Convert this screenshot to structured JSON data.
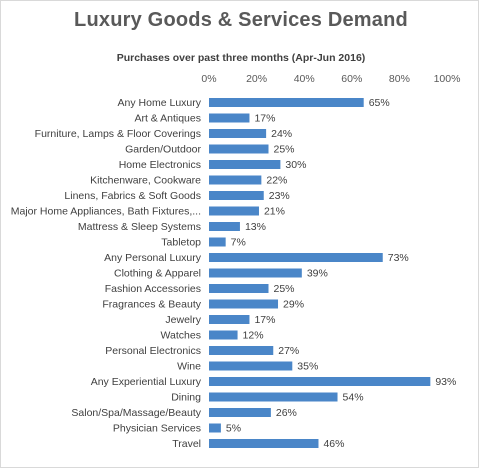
{
  "chart_data": {
    "type": "bar",
    "orientation": "horizontal",
    "title": "Luxury Goods & Services Demand",
    "subtitle": "Purchases over past three months (Apr-Jun 2016)",
    "xlabel": "",
    "ylabel": "",
    "xlim": [
      0,
      100
    ],
    "x_ticks": [
      "0%",
      "20%",
      "40%",
      "60%",
      "80%",
      "100%"
    ],
    "x_tick_values": [
      0,
      20,
      40,
      60,
      80,
      100
    ],
    "value_suffix": "%",
    "grid": false,
    "legend": "none",
    "bar_color": "#4a86c8",
    "categories": [
      "Any Home Luxury",
      "Art & Antiques",
      "Furniture, Lamps & Floor Coverings",
      "Garden/Outdoor",
      "Home Electronics",
      "Kitchenware, Cookware",
      "Linens, Fabrics & Soft Goods",
      "Major Home Appliances, Bath Fixtures,...",
      "Mattress & Sleep Systems",
      "Tabletop",
      "Any Personal Luxury",
      "Clothing & Apparel",
      "Fashion Accessories",
      "Fragrances & Beauty",
      "Jewelry",
      "Watches",
      "Personal Electronics",
      "Wine",
      "Any Experiential Luxury",
      "Dining",
      "Salon/Spa/Massage/Beauty",
      "Physician Services",
      "Travel"
    ],
    "values": [
      65,
      17,
      24,
      25,
      30,
      22,
      23,
      21,
      13,
      7,
      73,
      39,
      25,
      29,
      17,
      12,
      27,
      35,
      93,
      54,
      26,
      5,
      46
    ],
    "data_labels": [
      "65%",
      "17%",
      "24%",
      "25%",
      "30%",
      "22%",
      "23%",
      "21%",
      "13%",
      "7%",
      "73%",
      "39%",
      "25%",
      "29%",
      "17%",
      "12%",
      "27%",
      "35%",
      "93%",
      "54%",
      "26%",
      "5%",
      "46%"
    ]
  }
}
